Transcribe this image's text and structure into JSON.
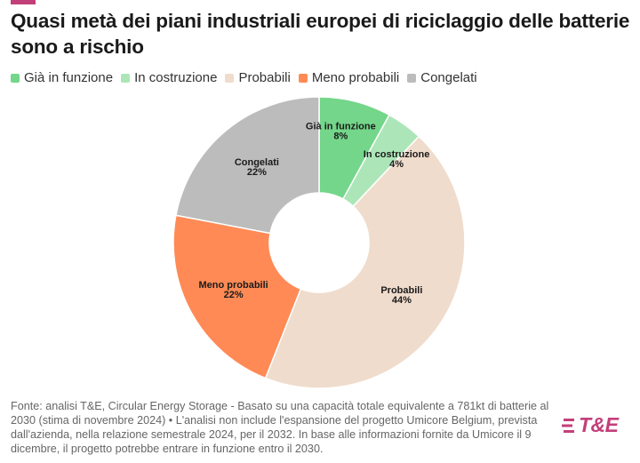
{
  "header": {
    "title": "Quasi metà dei piani industriali europei di riciclaggio delle batterie sono a rischio"
  },
  "legend": [
    {
      "label": "Già in funzione",
      "color": "#74d68a"
    },
    {
      "label": "In costruzione",
      "color": "#ace6b8"
    },
    {
      "label": "Probabili",
      "color": "#f0dccc"
    },
    {
      "label": "Meno probabili",
      "color": "#ff8a55"
    },
    {
      "label": "Congelati",
      "color": "#bcbcbc"
    }
  ],
  "chart_data": {
    "type": "pie",
    "donut": true,
    "slices": [
      {
        "label": "Già in funzione",
        "value": 8,
        "display": "8%",
        "color": "#74d68a"
      },
      {
        "label": "In costruzione",
        "value": 4,
        "display": "4%",
        "color": "#ace6b8"
      },
      {
        "label": "Probabili",
        "value": 44,
        "display": "44%",
        "color": "#f0dccc"
      },
      {
        "label": "Meno probabili",
        "value": 22,
        "display": "22%",
        "color": "#ff8a55"
      },
      {
        "label": "Congelati",
        "value": 22,
        "display": "22%",
        "color": "#bcbcbc"
      }
    ],
    "legend_position": "top-left"
  },
  "footnote": {
    "text": "Fonte: analisi T&E, Circular Energy Storage - Basato su una capacità totale equivalente a 781kt di batterie al 2030 (stima di novembre 2024) • L'analisi non include l'espansione del progetto Umicore Belgium, prevista dall'azienda, nella relazione semestrale 2024, per il 2032. In base alle informazioni fornite da Umicore il 9 dicembre, il progetto potrebbe entrare in funzione entro il 2030."
  },
  "brand": {
    "logo_text": "T&E",
    "color": "#c2407a"
  }
}
